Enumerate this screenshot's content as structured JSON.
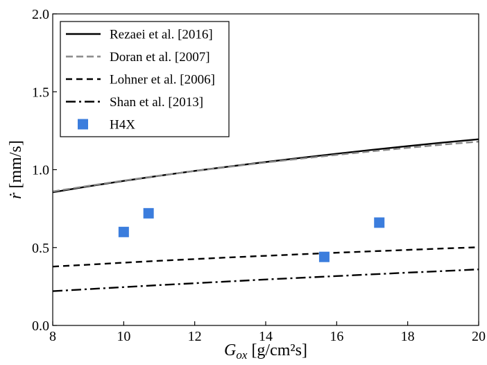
{
  "chart_data": {
    "type": "line",
    "title": "",
    "xlabel": {
      "main": "G",
      "sub": "ox",
      "unit": " [g/cm²s]"
    },
    "ylabel": {
      "main": "ṙ",
      "unit": " [mm/s]"
    },
    "xlim": [
      8,
      20
    ],
    "ylim": [
      0,
      2
    ],
    "x_ticks": [
      8,
      10,
      12,
      14,
      16,
      18,
      20
    ],
    "y_ticks": [
      0.0,
      0.5,
      1.0,
      1.5,
      2.0
    ],
    "x_tick_labels": [
      "8",
      "10",
      "12",
      "14",
      "16",
      "18",
      "20"
    ],
    "y_tick_labels": [
      "0.0",
      "0.5",
      "1.0",
      "1.5",
      "2.0"
    ],
    "grid": false,
    "legend_position": "top-left",
    "series": [
      {
        "name": "Rezaei et al. [2016]",
        "kind": "line",
        "style": "solid",
        "color": "#000000",
        "x": [
          8,
          9,
          10,
          11,
          12,
          13,
          14,
          15,
          16,
          17,
          18,
          19,
          20
        ],
        "y": [
          0.855,
          0.893,
          0.928,
          0.961,
          0.992,
          1.021,
          1.049,
          1.076,
          1.102,
          1.127,
          1.151,
          1.174,
          1.195
        ]
      },
      {
        "name": "Doran et al. [2007]",
        "kind": "line",
        "style": "dashed",
        "color": "#888888",
        "x": [
          8,
          9,
          10,
          11,
          12,
          13,
          14,
          15,
          16,
          17,
          18,
          19,
          20
        ],
        "y": [
          0.86,
          0.896,
          0.93,
          0.962,
          0.991,
          1.019,
          1.046,
          1.071,
          1.095,
          1.118,
          1.14,
          1.161,
          1.18
        ]
      },
      {
        "name": "Lohner et al. [2006]",
        "kind": "line",
        "style": "dashed",
        "color": "#000000",
        "x": [
          8,
          9,
          10,
          11,
          12,
          13,
          14,
          15,
          16,
          17,
          18,
          19,
          20
        ],
        "y": [
          0.378,
          0.39,
          0.403,
          0.415,
          0.426,
          0.437,
          0.447,
          0.457,
          0.467,
          0.476,
          0.485,
          0.494,
          0.502
        ]
      },
      {
        "name": "Shan et al. [2013]",
        "kind": "line",
        "style": "dashdot",
        "color": "#000000",
        "x": [
          8,
          9,
          10,
          11,
          12,
          13,
          14,
          15,
          16,
          17,
          18,
          19,
          20
        ],
        "y": [
          0.22,
          0.233,
          0.246,
          0.259,
          0.271,
          0.283,
          0.295,
          0.306,
          0.317,
          0.328,
          0.339,
          0.349,
          0.36
        ]
      },
      {
        "name": "H4X",
        "kind": "scatter",
        "marker": "square",
        "color": "#3b7ddd",
        "x": [
          10.0,
          10.7,
          15.65,
          17.2
        ],
        "y": [
          0.6,
          0.72,
          0.44,
          0.66
        ]
      }
    ]
  }
}
